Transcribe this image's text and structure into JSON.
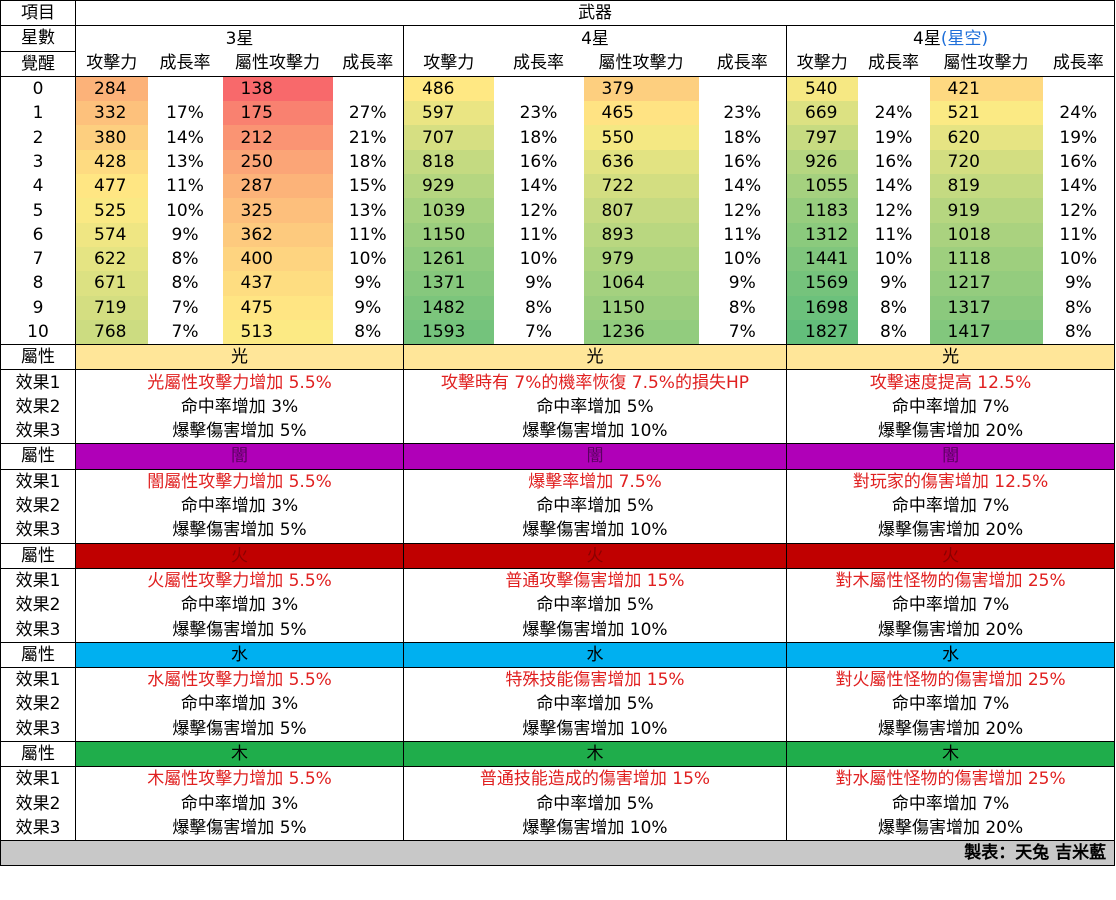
{
  "header": {
    "item_label": "項目",
    "weapon_label": "武器",
    "star_label": "星數",
    "awaken_label": "覺醒",
    "star3": "3星",
    "star4": "4星",
    "star4x_prefix": "4星",
    "star4x_suffix": "(星空)",
    "col_atk": "攻擊力",
    "col_rate": "成長率",
    "col_elem_atk": "屬性攻擊力"
  },
  "stats": [
    {
      "lv": "0",
      "s3": [
        "284",
        "",
        "138",
        ""
      ],
      "s4": [
        "486",
        "",
        "379",
        ""
      ],
      "s4x": [
        "540",
        "",
        "421",
        ""
      ]
    },
    {
      "lv": "1",
      "s3": [
        "332",
        "17%",
        "175",
        "27%"
      ],
      "s4": [
        "597",
        "23%",
        "465",
        "23%"
      ],
      "s4x": [
        "669",
        "24%",
        "521",
        "24%"
      ]
    },
    {
      "lv": "2",
      "s3": [
        "380",
        "14%",
        "212",
        "21%"
      ],
      "s4": [
        "707",
        "18%",
        "550",
        "18%"
      ],
      "s4x": [
        "797",
        "19%",
        "620",
        "19%"
      ]
    },
    {
      "lv": "3",
      "s3": [
        "428",
        "13%",
        "250",
        "18%"
      ],
      "s4": [
        "818",
        "16%",
        "636",
        "16%"
      ],
      "s4x": [
        "926",
        "16%",
        "720",
        "16%"
      ]
    },
    {
      "lv": "4",
      "s3": [
        "477",
        "11%",
        "287",
        "15%"
      ],
      "s4": [
        "929",
        "14%",
        "722",
        "14%"
      ],
      "s4x": [
        "1055",
        "14%",
        "819",
        "14%"
      ]
    },
    {
      "lv": "5",
      "s3": [
        "525",
        "10%",
        "325",
        "13%"
      ],
      "s4": [
        "1039",
        "12%",
        "807",
        "12%"
      ],
      "s4x": [
        "1183",
        "12%",
        "919",
        "12%"
      ]
    },
    {
      "lv": "6",
      "s3": [
        "574",
        "9%",
        "362",
        "11%"
      ],
      "s4": [
        "1150",
        "11%",
        "893",
        "11%"
      ],
      "s4x": [
        "1312",
        "11%",
        "1018",
        "11%"
      ]
    },
    {
      "lv": "7",
      "s3": [
        "622",
        "8%",
        "400",
        "10%"
      ],
      "s4": [
        "1261",
        "10%",
        "979",
        "10%"
      ],
      "s4x": [
        "1441",
        "10%",
        "1118",
        "10%"
      ]
    },
    {
      "lv": "8",
      "s3": [
        "671",
        "8%",
        "437",
        "9%"
      ],
      "s4": [
        "1371",
        "9%",
        "1064",
        "9%"
      ],
      "s4x": [
        "1569",
        "9%",
        "1217",
        "9%"
      ]
    },
    {
      "lv": "9",
      "s3": [
        "719",
        "7%",
        "475",
        "9%"
      ],
      "s4": [
        "1482",
        "8%",
        "1150",
        "8%"
      ],
      "s4x": [
        "1698",
        "8%",
        "1317",
        "8%"
      ]
    },
    {
      "lv": "10",
      "s3": [
        "768",
        "7%",
        "513",
        "8%"
      ],
      "s4": [
        "1593",
        "7%",
        "1236",
        "7%"
      ],
      "s4x": [
        "1827",
        "8%",
        "1417",
        "8%"
      ]
    }
  ],
  "elements": [
    {
      "attr_label": "屬性",
      "name": "光",
      "color": "#ffe699",
      "text_color": "#000000",
      "effects": [
        {
          "label": "效果1",
          "s3": "光屬性攻擊力增加 5.5%",
          "s4": "攻擊時有 7%的機率恢復 7.5%的損失HP",
          "s4x": "攻擊速度提高 12.5%",
          "red": true
        },
        {
          "label": "效果2",
          "s3": "命中率增加 3%",
          "s4": "命中率增加 5%",
          "s4x": "命中率增加 7%",
          "red": false
        },
        {
          "label": "效果3",
          "s3": "爆擊傷害增加 5%",
          "s4": "爆擊傷害增加 10%",
          "s4x": "爆擊傷害增加 20%",
          "red": false
        }
      ]
    },
    {
      "attr_label": "屬性",
      "name": "闇",
      "color": "#b000b8",
      "text_color": "#5a0060",
      "effects": [
        {
          "label": "效果1",
          "s3": "闇屬性攻擊力增加 5.5%",
          "s4": "爆擊率增加 7.5%",
          "s4x": "對玩家的傷害增加 12.5%",
          "red": true
        },
        {
          "label": "效果2",
          "s3": "命中率增加 3%",
          "s4": "命中率增加 5%",
          "s4x": "命中率增加 7%",
          "red": false
        },
        {
          "label": "效果3",
          "s3": "爆擊傷害增加 5%",
          "s4": "爆擊傷害增加 10%",
          "s4x": "爆擊傷害增加 20%",
          "red": false
        }
      ]
    },
    {
      "attr_label": "屬性",
      "name": "火",
      "color": "#c00000",
      "text_color": "#8a0000",
      "effects": [
        {
          "label": "效果1",
          "s3": "火屬性攻擊力增加 5.5%",
          "s4": "普通攻擊傷害增加 15%",
          "s4x": "對木屬性怪物的傷害增加 25%",
          "red": true
        },
        {
          "label": "效果2",
          "s3": "命中率增加 3%",
          "s4": "命中率增加 5%",
          "s4x": "命中率增加 7%",
          "red": false
        },
        {
          "label": "效果3",
          "s3": "爆擊傷害增加 5%",
          "s4": "爆擊傷害增加 10%",
          "s4x": "爆擊傷害增加 20%",
          "red": false
        }
      ]
    },
    {
      "attr_label": "屬性",
      "name": "水",
      "color": "#00b0f0",
      "text_color": "#000000",
      "effects": [
        {
          "label": "效果1",
          "s3": "水屬性攻擊力增加 5.5%",
          "s4": "特殊技能傷害增加 15%",
          "s4x": "對火屬性怪物的傷害增加 25%",
          "red": true
        },
        {
          "label": "效果2",
          "s3": "命中率增加 3%",
          "s4": "命中率增加 5%",
          "s4x": "命中率增加 7%",
          "red": false
        },
        {
          "label": "效果3",
          "s3": "爆擊傷害增加 5%",
          "s4": "爆擊傷害增加 10%",
          "s4x": "爆擊傷害增加 20%",
          "red": false
        }
      ]
    },
    {
      "attr_label": "屬性",
      "name": "木",
      "color": "#1fad4b",
      "text_color": "#000000",
      "effects": [
        {
          "label": "效果1",
          "s3": "木屬性攻擊力增加 5.5%",
          "s4": "普通技能造成的傷害增加 15%",
          "s4x": "對水屬性怪物的傷害增加 25%",
          "red": true
        },
        {
          "label": "效果2",
          "s3": "命中率增加 3%",
          "s4": "命中率增加 5%",
          "s4x": "命中率增加 7%",
          "red": false
        },
        {
          "label": "效果3",
          "s3": "爆擊傷害增加 5%",
          "s4": "爆擊傷害增加 10%",
          "s4x": "爆擊傷害增加 20%",
          "red": false
        }
      ]
    }
  ],
  "footer": {
    "credit": "製表：天兔 吉米藍"
  },
  "colors": {
    "heat_low": "#f8696b",
    "heat_mid": "#ffeb84",
    "heat_high": "#63be7b",
    "effect_red": "#e02020",
    "star_sky_blue": "#1e6fd9",
    "footer_bg": "#c8c8c8"
  }
}
